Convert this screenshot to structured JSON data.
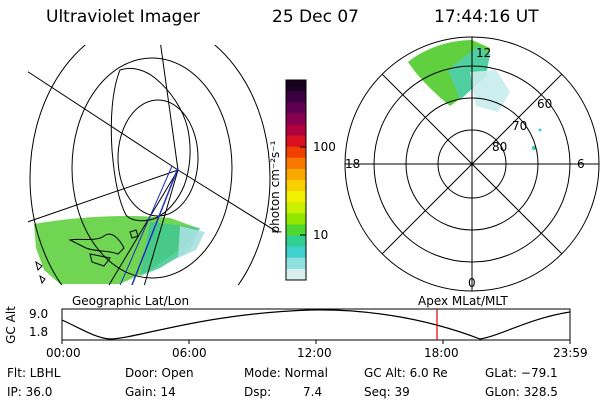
{
  "header": {
    "instrument": "Ultraviolet Imager",
    "date": "25 Dec 07",
    "time": "17:44:16 UT"
  },
  "colorbar": {
    "unit_label": "photon cm⁻²s⁻¹",
    "ticks": [
      "100",
      "10"
    ],
    "colors": [
      "#1a0020",
      "#3a0040",
      "#600050",
      "#8a0050",
      "#b00040",
      "#d81020",
      "#f04000",
      "#f87800",
      "#f8a800",
      "#f8d000",
      "#f0f000",
      "#c8f000",
      "#90e800",
      "#50d830",
      "#30d090",
      "#40d0d0",
      "#90e0e0",
      "#d8f0f0"
    ]
  },
  "left_panel": {
    "caption": "Geographic Lat/Lon"
  },
  "right_panel": {
    "caption": "Apex  MLat/MLT",
    "lat_labels": [
      "60",
      "70",
      "80"
    ],
    "mlt_labels": {
      "top": "12",
      "left": "18",
      "right": "6",
      "bottom": "0"
    }
  },
  "altitude_plot": {
    "ylabel": "GC Alt",
    "ymax_label": "9.0",
    "ymin_label": "1.8",
    "x_labels": [
      "00:00",
      "06:00",
      "12:00",
      "18:00",
      "23:59"
    ],
    "marker_color": "#e00000"
  },
  "info": {
    "flt": "Flt: LBHL",
    "door": "Door: Open",
    "mode": "Mode: Normal",
    "gc_alt": "GC Alt: 6.0 Re",
    "glat": "GLat: −79.1",
    "ip": "IP: 36.0",
    "gain": "Gain: 14",
    "dsp_label": "Dsp:",
    "dsp_value": "7.4",
    "seq": "Seq: 39",
    "glon": "GLon: 328.5"
  }
}
